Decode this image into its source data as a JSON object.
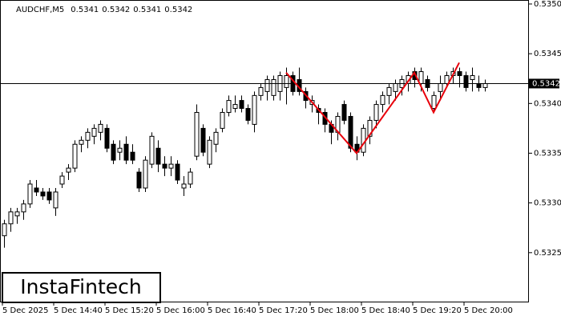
{
  "chart_data": {
    "type": "candlestick",
    "title": "AUDCHF,M5",
    "header_ohlc": [
      0.5341,
      0.5342,
      0.5341,
      0.5342
    ],
    "watermark": "InstaFintech",
    "ylim": [
      0.532,
      0.53504
    ],
    "yticks": [
      0.5325,
      {
        "value": 0.533,
        "label": "0.5330"
      },
      0.5335,
      {
        "value": 0.534,
        "label": "0.5340"
      },
      0.5345,
      {
        "value": 0.535,
        "label": "0.5350"
      }
    ],
    "xticks": [
      {
        "value": 0,
        "label": "5 Dec 2025"
      },
      {
        "value": 8,
        "label": "5 Dec 14:40"
      },
      {
        "value": 16,
        "label": "5 Dec 15:20"
      },
      {
        "value": 24,
        "label": "5 Dec 16:00"
      },
      {
        "value": 32,
        "label": "5 Dec 16:40"
      },
      {
        "value": 40,
        "label": "5 Dec 17:20"
      },
      {
        "value": 48,
        "label": "5 Dec 18:00"
      },
      {
        "value": 56,
        "label": "5 Dec 18:40"
      },
      {
        "value": 64,
        "label": "5 Dec 19:20"
      },
      {
        "value": 72,
        "label": "5 Dec 20:00"
      }
    ],
    "price_line": 0.5342,
    "bull_color": "#ffffff",
    "bear_color": "#000000",
    "ohlc": [
      [
        0.53267,
        0.53283,
        0.53255,
        0.53279
      ],
      [
        0.53279,
        0.53295,
        0.53271,
        0.53291
      ],
      [
        0.53287,
        0.53295,
        0.53279,
        0.53291
      ],
      [
        0.53291,
        0.53303,
        0.53283,
        0.53299
      ],
      [
        0.53299,
        0.53323,
        0.53295,
        0.53319
      ],
      [
        0.53315,
        0.53323,
        0.53307,
        0.53311
      ],
      [
        0.53311,
        0.53315,
        0.53303,
        0.53307
      ],
      [
        0.53311,
        0.53315,
        0.53299,
        0.53303
      ],
      [
        0.53295,
        0.53315,
        0.53287,
        0.53311
      ],
      [
        0.53319,
        0.53331,
        0.53315,
        0.53327
      ],
      [
        0.53331,
        0.53339,
        0.53323,
        0.53335
      ],
      [
        0.53335,
        0.53363,
        0.53331,
        0.53359
      ],
      [
        0.53359,
        0.53367,
        0.53351,
        0.53363
      ],
      [
        0.53363,
        0.53375,
        0.53355,
        0.53371
      ],
      [
        0.53367,
        0.53379,
        0.53359,
        0.53375
      ],
      [
        0.53371,
        0.53383,
        0.53363,
        0.53379
      ],
      [
        0.53375,
        0.53379,
        0.53351,
        0.53355
      ],
      [
        0.53359,
        0.53363,
        0.53339,
        0.53343
      ],
      [
        0.53351,
        0.53363,
        0.53343,
        0.53355
      ],
      [
        0.53359,
        0.53367,
        0.53339,
        0.53343
      ],
      [
        0.53351,
        0.53359,
        0.53339,
        0.53343
      ],
      [
        0.53331,
        0.53335,
        0.53311,
        0.53315
      ],
      [
        0.53315,
        0.53347,
        0.53311,
        0.53343
      ],
      [
        0.53339,
        0.53371,
        0.53335,
        0.53367
      ],
      [
        0.53355,
        0.53363,
        0.53331,
        0.53339
      ],
      [
        0.53339,
        0.53347,
        0.53327,
        0.53335
      ],
      [
        0.53335,
        0.53347,
        0.53327,
        0.53339
      ],
      [
        0.53339,
        0.53343,
        0.53319,
        0.53323
      ],
      [
        0.53315,
        0.53327,
        0.53307,
        0.53319
      ],
      [
        0.53319,
        0.53335,
        0.53315,
        0.53331
      ],
      [
        0.53347,
        0.53399,
        0.53343,
        0.53391
      ],
      [
        0.53375,
        0.53379,
        0.53347,
        0.53351
      ],
      [
        0.53339,
        0.53367,
        0.53335,
        0.53363
      ],
      [
        0.53359,
        0.53375,
        0.53351,
        0.53371
      ],
      [
        0.53375,
        0.53395,
        0.53371,
        0.53391
      ],
      [
        0.53391,
        0.53408,
        0.53387,
        0.53403
      ],
      [
        0.53395,
        0.53408,
        0.53391,
        0.53399
      ],
      [
        0.53403,
        0.53408,
        0.53391,
        0.53395
      ],
      [
        0.53395,
        0.53399,
        0.53379,
        0.53383
      ],
      [
        0.53379,
        0.53412,
        0.53371,
        0.53408
      ],
      [
        0.53408,
        0.5342,
        0.53403,
        0.53416
      ],
      [
        0.53412,
        0.53428,
        0.53403,
        0.53424
      ],
      [
        0.53408,
        0.53428,
        0.53403,
        0.53424
      ],
      [
        0.53412,
        0.53432,
        0.53403,
        0.53428
      ],
      [
        0.53416,
        0.53436,
        0.53399,
        0.53428
      ],
      [
        0.53428,
        0.53432,
        0.53408,
        0.53412
      ],
      [
        0.53424,
        0.53436,
        0.53408,
        0.53412
      ],
      [
        0.53412,
        0.53416,
        0.53395,
        0.53403
      ],
      [
        0.53399,
        0.53408,
        0.53391,
        0.53403
      ],
      [
        0.53395,
        0.53399,
        0.53379,
        0.53391
      ],
      [
        0.53391,
        0.53395,
        0.53371,
        0.53379
      ],
      [
        0.53379,
        0.53383,
        0.53359,
        0.53371
      ],
      [
        0.53371,
        0.53391,
        0.53363,
        0.53387
      ],
      [
        0.53399,
        0.53403,
        0.53379,
        0.53383
      ],
      [
        0.53387,
        0.53391,
        0.53351,
        0.53355
      ],
      [
        0.53359,
        0.53367,
        0.53343,
        0.53351
      ],
      [
        0.53351,
        0.53379,
        0.53347,
        0.53375
      ],
      [
        0.53367,
        0.53387,
        0.53359,
        0.53383
      ],
      [
        0.53383,
        0.53403,
        0.53375,
        0.53399
      ],
      [
        0.53399,
        0.53412,
        0.53391,
        0.53408
      ],
      [
        0.53408,
        0.5342,
        0.53399,
        0.53416
      ],
      [
        0.53412,
        0.53424,
        0.53403,
        0.5342
      ],
      [
        0.53416,
        0.53428,
        0.53408,
        0.53424
      ],
      [
        0.5342,
        0.53432,
        0.53412,
        0.53428
      ],
      [
        0.53432,
        0.53436,
        0.53416,
        0.53424
      ],
      [
        0.5342,
        0.53436,
        0.53412,
        0.53432
      ],
      [
        0.53424,
        0.53428,
        0.53412,
        0.53416
      ],
      [
        0.53395,
        0.53412,
        0.53391,
        0.53408
      ],
      [
        0.53412,
        0.53428,
        0.53403,
        0.5342
      ],
      [
        0.5342,
        0.53432,
        0.53416,
        0.53428
      ],
      [
        0.53428,
        0.53436,
        0.5342,
        0.53432
      ],
      [
        0.53432,
        0.53436,
        0.53416,
        0.53428
      ],
      [
        0.53428,
        0.53432,
        0.53412,
        0.53416
      ],
      [
        0.53424,
        0.53436,
        0.53412,
        0.53428
      ],
      [
        0.5342,
        0.53428,
        0.53412,
        0.53416
      ],
      [
        0.53416,
        0.53424,
        0.53412,
        0.5342
      ]
    ],
    "pattern": {
      "color": "#e8000b",
      "x": [
        44,
        55,
        64,
        67,
        71
      ],
      "values": [
        0.53431,
        0.5335,
        0.53431,
        0.53391,
        0.53441
      ]
    }
  }
}
